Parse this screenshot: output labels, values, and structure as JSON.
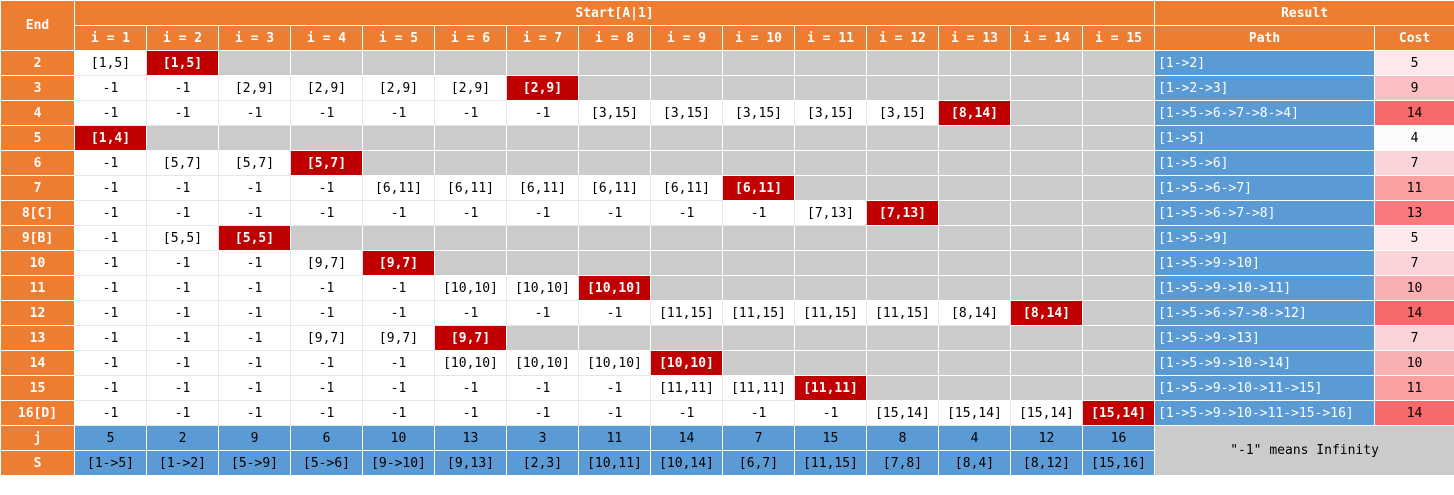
{
  "headers": {
    "end": "End",
    "start": "Start[A|1]",
    "result": "Result",
    "path": "Path",
    "cost": "Cost",
    "columns": [
      "i = 1",
      "i = 2",
      "i = 3",
      "i = 4",
      "i = 5",
      "i = 6",
      "i = 7",
      "i = 8",
      "i = 9",
      "i = 10",
      "i = 11",
      "i = 12",
      "i = 13",
      "i = 14",
      "i = 15"
    ]
  },
  "rows": [
    {
      "end": "2",
      "cells": [
        "[1,5]",
        "[1,5]",
        null,
        null,
        null,
        null,
        null,
        null,
        null,
        null,
        null,
        null,
        null,
        null,
        null
      ],
      "hl": 1,
      "path": "[1->2]",
      "cost": "5",
      "costColor": "#fde9ea"
    },
    {
      "end": "3",
      "cells": [
        "-1",
        "-1",
        "[2,9]",
        "[2,9]",
        "[2,9]",
        "[2,9]",
        "[2,9]",
        null,
        null,
        null,
        null,
        null,
        null,
        null,
        null
      ],
      "hl": 6,
      "path": "[1->2->3]",
      "cost": "9",
      "costColor": "#fbc0c3"
    },
    {
      "end": "4",
      "cells": [
        "-1",
        "-1",
        "-1",
        "-1",
        "-1",
        "-1",
        "-1",
        "[3,15]",
        "[3,15]",
        "[3,15]",
        "[3,15]",
        "[3,15]",
        "[8,14]",
        null,
        null
      ],
      "hl": 12,
      "path": "[1->5->6->7->8->4]",
      "cost": "14",
      "costColor": "#f8696b"
    },
    {
      "end": "5",
      "cells": [
        "[1,4]",
        null,
        null,
        null,
        null,
        null,
        null,
        null,
        null,
        null,
        null,
        null,
        null,
        null,
        null
      ],
      "hl": 0,
      "path": "[1->5]",
      "cost": "4",
      "costColor": "#fcfcff"
    },
    {
      "end": "6",
      "cells": [
        "-1",
        "[5,7]",
        "[5,7]",
        "[5,7]",
        null,
        null,
        null,
        null,
        null,
        null,
        null,
        null,
        null,
        null,
        null
      ],
      "hl": 3,
      "path": "[1->5->6]",
      "cost": "7",
      "costColor": "#fbd4d7"
    },
    {
      "end": "7",
      "cells": [
        "-1",
        "-1",
        "-1",
        "-1",
        "[6,11]",
        "[6,11]",
        "[6,11]",
        "[6,11]",
        "[6,11]",
        "[6,11]",
        null,
        null,
        null,
        null,
        null
      ],
      "hl": 9,
      "path": "[1->5->6->7]",
      "cost": "11",
      "costColor": "#faa0a3"
    },
    {
      "end": "8[C]",
      "cells": [
        "-1",
        "-1",
        "-1",
        "-1",
        "-1",
        "-1",
        "-1",
        "-1",
        "-1",
        "-1",
        "[7,13]",
        "[7,13]",
        null,
        null,
        null
      ],
      "hl": 11,
      "path": "[1->5->6->7->8]",
      "cost": "13",
      "costColor": "#f9797c"
    },
    {
      "end": "9[B]",
      "cells": [
        "-1",
        "[5,5]",
        "[5,5]",
        null,
        null,
        null,
        null,
        null,
        null,
        null,
        null,
        null,
        null,
        null,
        null
      ],
      "hl": 2,
      "path": "[1->5->9]",
      "cost": "5",
      "costColor": "#fde9ea"
    },
    {
      "end": "10",
      "cells": [
        "-1",
        "-1",
        "-1",
        "[9,7]",
        "[9,7]",
        null,
        null,
        null,
        null,
        null,
        null,
        null,
        null,
        null,
        null
      ],
      "hl": 4,
      "path": "[1->5->9->10]",
      "cost": "7",
      "costColor": "#fbd4d7"
    },
    {
      "end": "11",
      "cells": [
        "-1",
        "-1",
        "-1",
        "-1",
        "-1",
        "[10,10]",
        "[10,10]",
        "[10,10]",
        null,
        null,
        null,
        null,
        null,
        null,
        null
      ],
      "hl": 7,
      "path": "[1->5->9->10->11]",
      "cost": "10",
      "costColor": "#fab0b3"
    },
    {
      "end": "12",
      "cells": [
        "-1",
        "-1",
        "-1",
        "-1",
        "-1",
        "-1",
        "-1",
        "-1",
        "[11,15]",
        "[11,15]",
        "[11,15]",
        "[11,15]",
        "[8,14]",
        "[8,14]",
        null
      ],
      "hl": 13,
      "path": "[1->5->6->7->8->12]",
      "cost": "14",
      "costColor": "#f8696b"
    },
    {
      "end": "13",
      "cells": [
        "-1",
        "-1",
        "-1",
        "[9,7]",
        "[9,7]",
        "[9,7]",
        null,
        null,
        null,
        null,
        null,
        null,
        null,
        null,
        null
      ],
      "hl": 5,
      "path": "[1->5->9->13]",
      "cost": "7",
      "costColor": "#fbd4d7"
    },
    {
      "end": "14",
      "cells": [
        "-1",
        "-1",
        "-1",
        "-1",
        "-1",
        "[10,10]",
        "[10,10]",
        "[10,10]",
        "[10,10]",
        null,
        null,
        null,
        null,
        null,
        null
      ],
      "hl": 8,
      "path": "[1->5->9->10->14]",
      "cost": "10",
      "costColor": "#fab0b3"
    },
    {
      "end": "15",
      "cells": [
        "-1",
        "-1",
        "-1",
        "-1",
        "-1",
        "-1",
        "-1",
        "-1",
        "[11,11]",
        "[11,11]",
        "[11,11]",
        null,
        null,
        null,
        null
      ],
      "hl": 10,
      "path": "[1->5->9->10->11->15]",
      "cost": "11",
      "costColor": "#faa0a3"
    },
    {
      "end": "16[D]",
      "cells": [
        "-1",
        "-1",
        "-1",
        "-1",
        "-1",
        "-1",
        "-1",
        "-1",
        "-1",
        "-1",
        "-1",
        "[15,14]",
        "[15,14]",
        "[15,14]",
        "[15,14]"
      ],
      "hl": 14,
      "path": "[1->5->9->10->11->15->16]",
      "cost": "14",
      "costColor": "#f8696b"
    }
  ],
  "footer": {
    "j_label": "j",
    "j": [
      "5",
      "2",
      "9",
      "6",
      "10",
      "13",
      "3",
      "11",
      "14",
      "7",
      "15",
      "8",
      "4",
      "12",
      "16"
    ],
    "s_label": "S",
    "s": [
      "[1->5]",
      "[1->2]",
      "[5->9]",
      "[5->6]",
      "[9->10]",
      "[9,13]",
      "[2,3]",
      "[10,11]",
      "[10,14]",
      "[6,7]",
      "[11,15]",
      "[7,8]",
      "[8,4]",
      "[8,12]",
      "[15,16]"
    ],
    "note": "\"-1\" means Infinity"
  },
  "colors": {
    "orange": "#ed7d31",
    "blue": "#5b9bd5",
    "red": "#c00000",
    "gray": "#cbcbcb"
  }
}
